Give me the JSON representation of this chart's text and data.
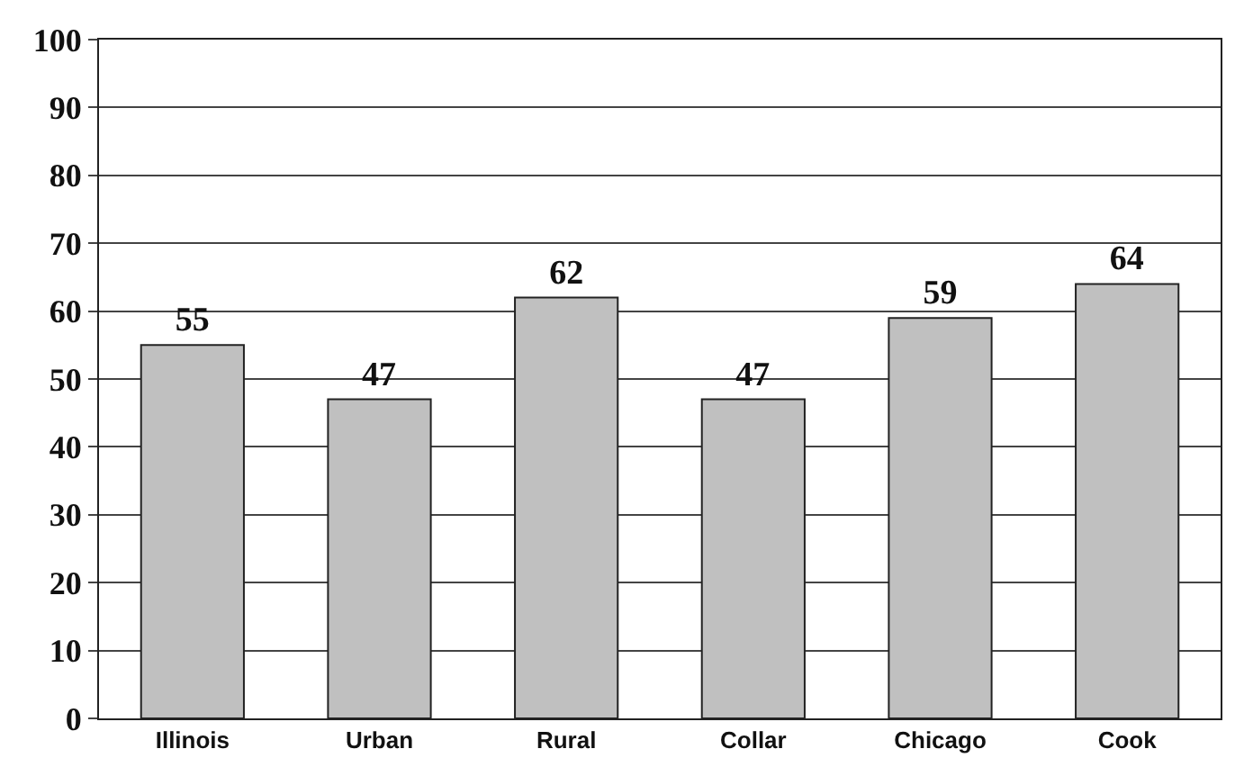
{
  "chart_data": {
    "type": "bar",
    "categories": [
      "Illinois",
      "Urban",
      "Rural",
      "Collar",
      "Chicago",
      "Cook"
    ],
    "values": [
      55,
      47,
      62,
      47,
      59,
      64
    ],
    "color": "#c0c0c0",
    "ylim": [
      0,
      100
    ],
    "yticks": [
      0,
      10,
      20,
      30,
      40,
      50,
      60,
      70,
      80,
      90,
      100
    ],
    "grid": "y",
    "data_labels": true
  }
}
